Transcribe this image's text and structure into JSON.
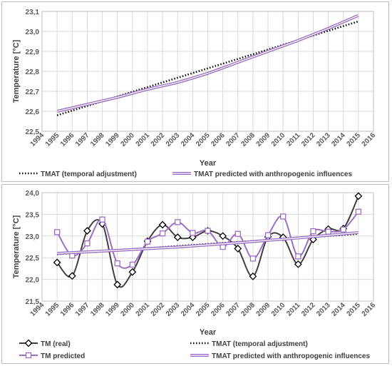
{
  "chart_data": [
    {
      "type": "line",
      "title": "",
      "xlabel": "Year",
      "ylabel": "Temperature [°C]",
      "x_ticks": [
        "1994",
        "1995",
        "1996",
        "1997",
        "1998",
        "1999",
        "2000",
        "2001",
        "2002",
        "2003",
        "2004",
        "2005",
        "2006",
        "2007",
        "2008",
        "2009",
        "2010",
        "2011",
        "2012",
        "2013",
        "2014",
        "2015",
        "2016"
      ],
      "y_ticks": [
        "22,5",
        "22,6",
        "22,7",
        "22,8",
        "22,9",
        "23,0",
        "23,1"
      ],
      "xlim": [
        1994,
        2016
      ],
      "ylim": [
        22.5,
        23.1
      ],
      "grid": true,
      "legend_position": "bottom",
      "series": [
        {
          "name": "TMAT (temporal adjustment)",
          "style": "dotted",
          "color": "#000000",
          "x": [
            1995,
            2015
          ],
          "y": [
            22.58,
            23.05
          ]
        },
        {
          "name": "TMAT predicted with anthropogenic influences",
          "style": "double-line",
          "color": "#9b6fc4",
          "x": [
            1995,
            1997,
            1999,
            2001,
            2003,
            2005,
            2007,
            2009,
            2011,
            2013,
            2015
          ],
          "y": [
            22.6,
            22.635,
            22.67,
            22.71,
            22.745,
            22.79,
            22.845,
            22.9,
            22.955,
            23.015,
            23.08
          ]
        }
      ]
    },
    {
      "type": "line",
      "title": "",
      "xlabel": "Year",
      "ylabel": "Temperature [°C]",
      "x_ticks": [
        "1994",
        "1995",
        "1996",
        "1997",
        "1998",
        "1999",
        "2000",
        "2001",
        "2002",
        "2003",
        "2004",
        "2005",
        "2006",
        "2007",
        "2008",
        "2009",
        "2010",
        "2011",
        "2012",
        "2013",
        "2014",
        "2015",
        "2016"
      ],
      "y_ticks": [
        "21,5",
        "22,0",
        "22,5",
        "23,0",
        "23,5",
        "24,0"
      ],
      "xlim": [
        1994,
        2016
      ],
      "ylim": [
        21.5,
        24.0
      ],
      "grid": true,
      "legend_position": "bottom",
      "series": [
        {
          "name": "TM (real)",
          "marker": "diamond",
          "color": "#000000",
          "x": [
            1995,
            1996,
            1997,
            1998,
            1999,
            2000,
            2001,
            2002,
            2003,
            2004,
            2005,
            2006,
            2007,
            2008,
            2009,
            2010,
            2011,
            2012,
            2013,
            2014,
            2015
          ],
          "y": [
            22.39,
            22.08,
            23.12,
            23.28,
            21.88,
            22.17,
            22.88,
            23.26,
            22.97,
            22.97,
            23.12,
            23.0,
            22.71,
            22.07,
            22.98,
            22.97,
            22.35,
            22.92,
            23.16,
            23.17,
            23.92
          ]
        },
        {
          "name": "TMAT (temporal adjustment)",
          "style": "dotted",
          "color": "#000000",
          "x": [
            1995,
            2015
          ],
          "y": [
            22.58,
            23.05
          ]
        },
        {
          "name": "TM predicted",
          "marker": "square",
          "color": "#9b6fc4",
          "x": [
            1995,
            1996,
            1997,
            1998,
            1999,
            2000,
            2001,
            2002,
            2003,
            2004,
            2005,
            2006,
            2007,
            2008,
            2009,
            2010,
            2011,
            2012,
            2013,
            2014,
            2015
          ],
          "y": [
            23.09,
            22.55,
            22.83,
            23.38,
            22.37,
            22.34,
            22.87,
            23.06,
            23.32,
            23.07,
            23.12,
            22.75,
            23.05,
            22.48,
            23.02,
            23.45,
            22.53,
            23.11,
            23.1,
            23.15,
            23.56
          ]
        },
        {
          "name": "TMAT predicted with anthropogenic influences",
          "style": "double-line",
          "color": "#9b6fc4",
          "x": [
            1995,
            1999,
            2003,
            2007,
            2011,
            2015
          ],
          "y": [
            22.6,
            22.67,
            22.745,
            22.845,
            22.955,
            23.08
          ]
        }
      ]
    }
  ]
}
